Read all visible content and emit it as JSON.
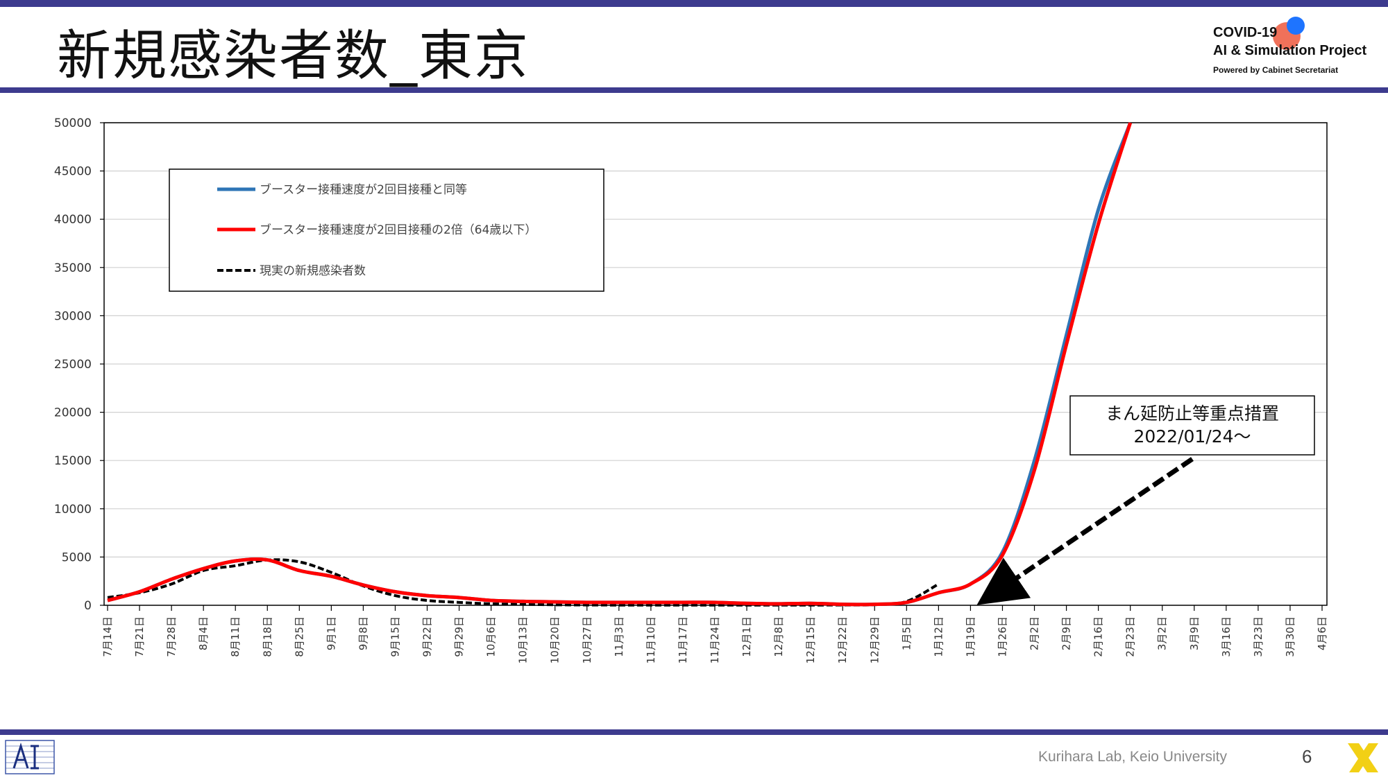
{
  "page": {
    "title": "新規感染者数_東京",
    "project_line1": "COVID-19",
    "project_line2": "AI & Simulation Project",
    "project_line3": "Powered by Cabinet Secretariat",
    "footer_lab": "Kurihara Lab, Keio University",
    "page_number": "6"
  },
  "colors": {
    "band": "#3d3b8e",
    "blue_series": "#2e75b6",
    "red_series": "#ff0000",
    "actual_series": "#000000"
  },
  "chart_data": {
    "type": "line",
    "title": "",
    "xlabel": "",
    "ylabel": "",
    "ylim": [
      0,
      50000
    ],
    "y_ticks": [
      0,
      5000,
      10000,
      15000,
      20000,
      25000,
      30000,
      35000,
      40000,
      45000,
      50000
    ],
    "x_ticks": [
      "7月14日",
      "7月21日",
      "7月28日",
      "8月4日",
      "8月11日",
      "8月18日",
      "8月25日",
      "9月1日",
      "9月8日",
      "9月15日",
      "9月22日",
      "9月29日",
      "10月6日",
      "10月13日",
      "10月20日",
      "10月27日",
      "11月3日",
      "11月10日",
      "11月17日",
      "11月24日",
      "12月1日",
      "12月8日",
      "12月15日",
      "12月22日",
      "12月29日",
      "1月5日",
      "1月12日",
      "1月19日",
      "1月26日",
      "2月2日",
      "2月9日",
      "2月16日",
      "2月23日",
      "3月2日",
      "3月9日",
      "3月16日",
      "3月23日",
      "3月30日",
      "4月6日"
    ],
    "grid": true,
    "legend_position": "top-left",
    "series": [
      {
        "name": "ブースター接種速度が2回目接種と同等",
        "color": "#2e75b6",
        "style": "solid",
        "points": [
          [
            "7月14日",
            500
          ],
          [
            "7月21日",
            1400
          ],
          [
            "7月28日",
            2700
          ],
          [
            "8月4日",
            3800
          ],
          [
            "8月11日",
            4600
          ],
          [
            "8月18日",
            4700
          ],
          [
            "8月25日",
            3600
          ],
          [
            "9月1日",
            3000
          ],
          [
            "9月8日",
            2100
          ],
          [
            "9月15日",
            1400
          ],
          [
            "9月22日",
            1000
          ],
          [
            "9月29日",
            800
          ],
          [
            "10月6日",
            500
          ],
          [
            "10月13日",
            400
          ],
          [
            "10月20日",
            350
          ],
          [
            "10月27日",
            300
          ],
          [
            "11月3日",
            300
          ],
          [
            "11月10日",
            300
          ],
          [
            "11月17日",
            300
          ],
          [
            "11月24日",
            300
          ],
          [
            "12月1日",
            200
          ],
          [
            "12月8日",
            150
          ],
          [
            "12月15日",
            200
          ],
          [
            "12月22日",
            100
          ],
          [
            "12月29日",
            100
          ],
          [
            "1月5日",
            300
          ],
          [
            "1月12日",
            1300
          ],
          [
            "1月19日",
            2200
          ],
          [
            "1月26日",
            5500
          ],
          [
            "2月2日",
            15000
          ],
          [
            "2月9日",
            28000
          ],
          [
            "2月16日",
            41000
          ],
          [
            "2月23日",
            50000
          ]
        ]
      },
      {
        "name": "ブースター接種速度が2回目接種の2倍（64歳以下）",
        "color": "#ff0000",
        "style": "solid",
        "points": [
          [
            "7月14日",
            500
          ],
          [
            "7月21日",
            1400
          ],
          [
            "7月28日",
            2700
          ],
          [
            "8月4日",
            3800
          ],
          [
            "8月11日",
            4600
          ],
          [
            "8月18日",
            4700
          ],
          [
            "8月25日",
            3600
          ],
          [
            "9月1日",
            3000
          ],
          [
            "9月8日",
            2100
          ],
          [
            "9月15日",
            1400
          ],
          [
            "9月22日",
            1000
          ],
          [
            "9月29日",
            800
          ],
          [
            "10月6日",
            500
          ],
          [
            "10月13日",
            400
          ],
          [
            "10月20日",
            350
          ],
          [
            "10月27日",
            300
          ],
          [
            "11月3日",
            300
          ],
          [
            "11月10日",
            300
          ],
          [
            "11月17日",
            300
          ],
          [
            "11月24日",
            300
          ],
          [
            "12月1日",
            200
          ],
          [
            "12月8日",
            150
          ],
          [
            "12月15日",
            200
          ],
          [
            "12月22日",
            100
          ],
          [
            "12月29日",
            100
          ],
          [
            "1月5日",
            300
          ],
          [
            "1月12日",
            1300
          ],
          [
            "1月19日",
            2200
          ],
          [
            "1月26日",
            5200
          ],
          [
            "2月2日",
            14000
          ],
          [
            "2月9日",
            27000
          ],
          [
            "2月16日",
            39500
          ],
          [
            "2月23日",
            50000
          ]
        ]
      },
      {
        "name": "現実の新規感染者数",
        "color": "#000000",
        "style": "dashed",
        "points": [
          [
            "7月14日",
            800
          ],
          [
            "7月21日",
            1300
          ],
          [
            "7月28日",
            2200
          ],
          [
            "8月4日",
            3600
          ],
          [
            "8月11日",
            4100
          ],
          [
            "8月18日",
            4700
          ],
          [
            "8月25日",
            4500
          ],
          [
            "9月1日",
            3400
          ],
          [
            "9月8日",
            2000
          ],
          [
            "9月15日",
            1000
          ],
          [
            "9月22日",
            500
          ],
          [
            "9月29日",
            300
          ],
          [
            "10月6日",
            150
          ],
          [
            "10月13日",
            100
          ],
          [
            "10月20日",
            50
          ],
          [
            "10月27日",
            30
          ],
          [
            "11月3日",
            20
          ],
          [
            "11月10日",
            20
          ],
          [
            "11月17日",
            20
          ],
          [
            "11月24日",
            20
          ],
          [
            "12月1日",
            20
          ],
          [
            "12月8日",
            20
          ],
          [
            "12月15日",
            20
          ],
          [
            "12月22日",
            30
          ],
          [
            "12月29日",
            60
          ],
          [
            "1月5日",
            400
          ],
          [
            "1月12日",
            2200
          ]
        ]
      }
    ],
    "annotation": {
      "line1": "まん延防止等重点措置",
      "line2": "2022/01/24～",
      "arrow_target": "1月26日"
    }
  }
}
